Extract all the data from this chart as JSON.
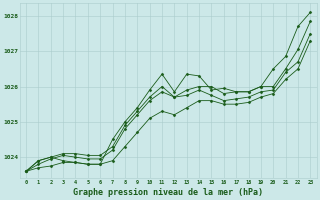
{
  "background_color": "#cce8e8",
  "grid_color": "#aacccc",
  "line_color": "#1a5c1a",
  "marker_color": "#1a5c1a",
  "title": "Graphe pression niveau de la mer (hPa)",
  "title_fontsize": 6.0,
  "xlabel_ticks": [
    0,
    1,
    2,
    3,
    4,
    5,
    6,
    7,
    8,
    9,
    10,
    11,
    12,
    13,
    14,
    15,
    16,
    17,
    18,
    19,
    20,
    21,
    22,
    23
  ],
  "ylim": [
    1023.4,
    1028.35
  ],
  "yticks": [
    1024,
    1025,
    1026,
    1027,
    1028
  ],
  "series1": [
    1023.6,
    1023.9,
    1024.0,
    1023.9,
    1023.85,
    1023.8,
    1023.8,
    1024.5,
    1025.0,
    1025.4,
    1025.9,
    1026.35,
    1025.85,
    1026.35,
    1026.3,
    1025.9,
    1025.95,
    1025.85,
    1025.85,
    1026.0,
    1026.5,
    1026.85,
    1027.7,
    1028.1
  ],
  "series2": [
    1023.6,
    1023.9,
    1024.0,
    1024.1,
    1024.1,
    1024.05,
    1024.05,
    1024.3,
    1024.9,
    1025.3,
    1025.7,
    1026.0,
    1025.7,
    1025.9,
    1026.0,
    1026.0,
    1025.8,
    1025.85,
    1025.85,
    1026.0,
    1026.0,
    1026.5,
    1027.05,
    1027.85
  ],
  "series3": [
    1023.6,
    1023.8,
    1023.95,
    1024.05,
    1024.0,
    1023.95,
    1023.95,
    1024.2,
    1024.8,
    1025.2,
    1025.6,
    1025.85,
    1025.7,
    1025.75,
    1025.9,
    1025.75,
    1025.6,
    1025.65,
    1025.7,
    1025.85,
    1025.9,
    1026.4,
    1026.7,
    1027.5
  ],
  "series4": [
    1023.6,
    1023.7,
    1023.75,
    1023.85,
    1023.85,
    1023.8,
    1023.8,
    1023.9,
    1024.3,
    1024.7,
    1025.1,
    1025.3,
    1025.2,
    1025.4,
    1025.6,
    1025.6,
    1025.5,
    1025.5,
    1025.55,
    1025.7,
    1025.8,
    1026.2,
    1026.5,
    1027.3
  ]
}
